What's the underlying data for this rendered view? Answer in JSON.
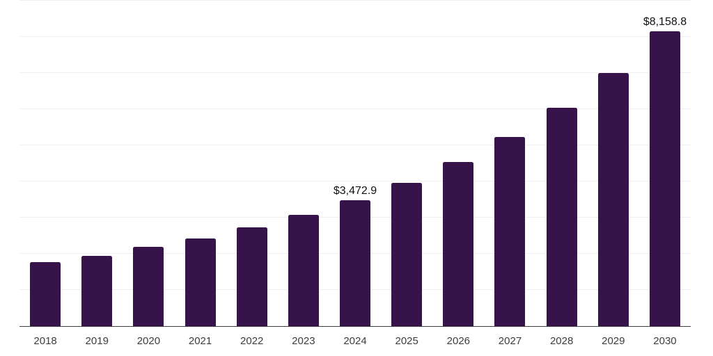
{
  "chart_data": {
    "type": "bar",
    "title": "",
    "xlabel": "",
    "ylabel": "",
    "categories": [
      "2018",
      "2019",
      "2020",
      "2021",
      "2022",
      "2023",
      "2024",
      "2025",
      "2026",
      "2027",
      "2028",
      "2029",
      "2030"
    ],
    "values": [
      1770,
      1935,
      2190,
      2420,
      2725,
      3080,
      3472.9,
      3955,
      4540,
      5225,
      6040,
      7010,
      8158.8
    ],
    "value_labels": [
      "",
      "",
      "",
      "",
      "",
      "",
      "$3,472.9",
      "",
      "",
      "",
      "",
      "",
      "$8,158.8"
    ],
    "ylim": [
      0,
      9000
    ],
    "gridline_interval": 1000,
    "grid": true,
    "legend": false,
    "colors": {
      "bar": "#361349",
      "background": "#ffffff",
      "gridline": "#efefef",
      "axis_line": "#3d3d3d",
      "tick_label": "#3d3d3d",
      "data_label": "#111111"
    }
  }
}
